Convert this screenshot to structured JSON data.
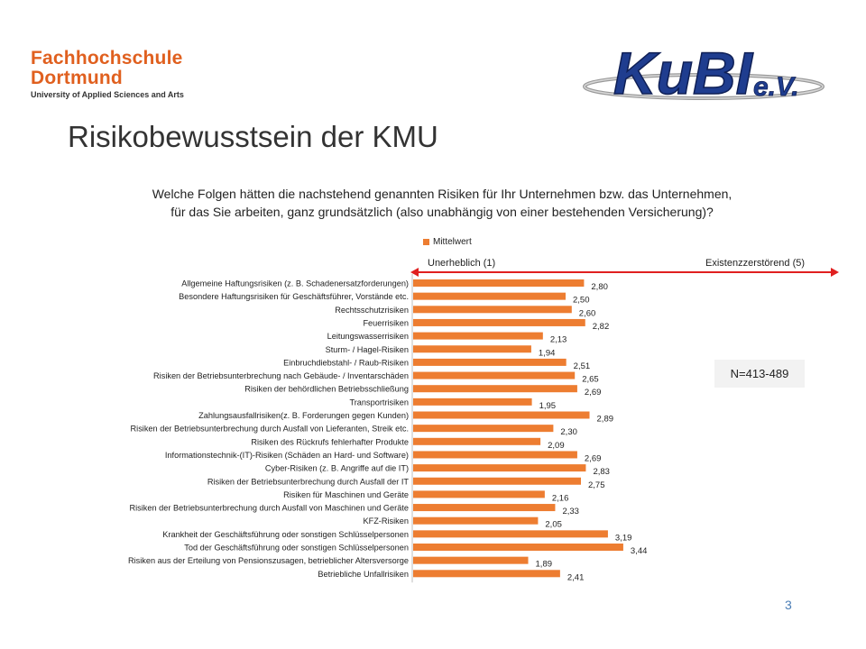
{
  "header": {
    "fh_logo": {
      "line1": "Fachhochschule",
      "line2": "Dortmund",
      "line3": "University of Applied Sciences and Arts"
    },
    "kubi_logo": {
      "main": "KuBI",
      "suffix": "e.V."
    }
  },
  "slide": {
    "title": "Risikobewusstsein der KMU",
    "question_line1": "Welche Folgen hätten die nachstehend genannten Risiken für Ihr Unternehmen  bzw. das Unternehmen,",
    "question_line2": "für das Sie arbeiten, ganz grundsätzlich (also unabhängig von einer bestehenden Versicherung)?",
    "scale_left": "Unerheblich  (1)",
    "scale_right": "Existenzzerstörend (5)",
    "sample_size": "N=413-489",
    "page_number": "3"
  },
  "colors": {
    "bar": "#ed7d31",
    "accent_red": "#e02020",
    "fh_orange": "#e0601f",
    "kubi_blue": "#1f3d8f"
  },
  "chart_data": {
    "type": "bar",
    "orientation": "horizontal",
    "legend": [
      "Mittelwert"
    ],
    "legend_position": "top",
    "categories": [
      "Allgemeine Haftungsrisiken (z. B. Schadenersatzforderungen)",
      "Besondere Haftungsrisiken für Geschäftsführer, Vorstände etc.",
      "Rechtsschutzrisiken",
      "Feuerrisiken",
      "Leitungswasserrisiken",
      "Sturm- / Hagel-Risiken",
      "Einbruchdiebstahl- / Raub-Risiken",
      "Risiken der Betriebsunterbrechung nach Gebäude- / Inventarschäden",
      "Risiken der behördlichen Betriebsschließung",
      "Transportrisiken",
      "Zahlungsausfallrisiken(z. B. Forderungen gegen Kunden)",
      "Risiken der Betriebsunterbrechung durch Ausfall von Lieferanten, Streik etc.",
      "Risiken des Rückrufs fehlerhafter Produkte",
      "Informationstechnik-(IT)-Risiken (Schäden an Hard- und Software)",
      "Cyber-Risiken (z. B. Angriffe auf die IT)",
      "Risiken der Betriebsunterbrechung durch Ausfall der IT",
      "Risiken für Maschinen und Geräte",
      "Risiken der Betriebsunterbrechung durch Ausfall von Maschinen und Geräte",
      "KFZ-Risiken",
      "Krankheit der Geschäftsführung oder sonstigen Schlüsselpersonen",
      "Tod der Geschäftsführung oder sonstigen Schlüsselpersonen",
      "Risiken aus der Erteilung von Pensionszusagen, betrieblicher Altersversorge",
      "Betriebliche Unfallrisiken"
    ],
    "series": [
      {
        "name": "Mittelwert",
        "values": [
          2.8,
          2.5,
          2.6,
          2.82,
          2.13,
          1.94,
          2.51,
          2.65,
          2.69,
          1.95,
          2.89,
          2.3,
          2.09,
          2.69,
          2.83,
          2.75,
          2.16,
          2.33,
          2.05,
          3.19,
          3.44,
          1.89,
          2.41
        ],
        "labels": [
          "2,80",
          "2,50",
          "2,60",
          "2,82",
          "2,13",
          "1,94",
          "2,51",
          "2,65",
          "2,69",
          "1,95",
          "2,89",
          "2,30",
          "2,09",
          "2,69",
          "2,83",
          "2,75",
          "2,16",
          "2,33",
          "2,05",
          "3,19",
          "3,44",
          "1,89",
          "2,41"
        ]
      }
    ],
    "xlim": [
      1,
      5
    ],
    "grid": false
  }
}
